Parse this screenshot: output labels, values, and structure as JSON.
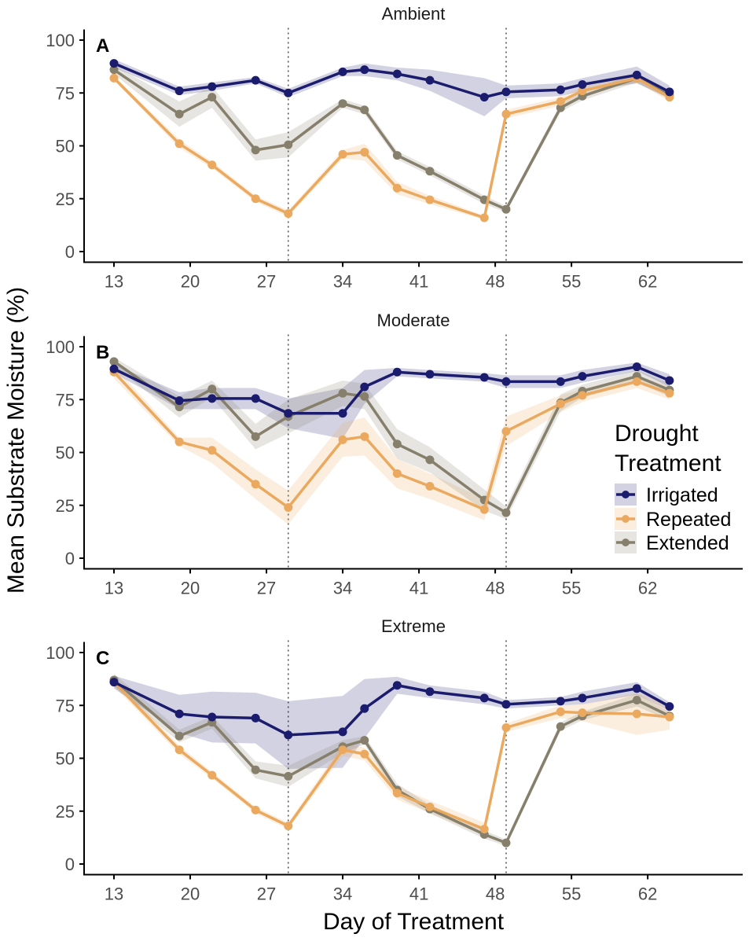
{
  "chart_data": {
    "type": "line",
    "ylabel": "Mean Substrate Moisture (%)",
    "xlabel": "Day of Treatment",
    "x_ticks": [
      13,
      20,
      27,
      34,
      41,
      48,
      55,
      62
    ],
    "y_ticks": [
      0,
      25,
      50,
      75,
      100
    ],
    "xlim": [
      10.4,
      71
    ],
    "ylim": [
      -5,
      105
    ],
    "reference_lines_x": [
      29,
      49
    ],
    "grid": false,
    "legend": {
      "title_line1": "Drought",
      "title_line2": "Treatment",
      "placement": "right of panel B"
    },
    "series_styles": [
      {
        "name": "Irrigated",
        "color": "#1c1c6e"
      },
      {
        "name": "Repeated",
        "color": "#eaa95e"
      },
      {
        "name": "Extended",
        "color": "#857f6b"
      }
    ],
    "x": [
      13,
      19,
      22,
      26,
      29,
      34,
      36,
      39,
      42,
      47,
      49,
      54,
      56,
      61,
      64
    ],
    "panels": [
      {
        "letter": "A",
        "title": "Ambient",
        "series": [
          {
            "name": "Irrigated",
            "values": [
              89,
              76,
              78,
              81,
              75,
              85,
              86,
              84,
              81,
              73,
              75.5,
              76.5,
              79,
              83.5,
              75.5
            ],
            "se": [
              2,
              2,
              2,
              1.5,
              2,
              2,
              3,
              3,
              5,
              9,
              3,
              3,
              3,
              4,
              3
            ]
          },
          {
            "name": "Repeated",
            "values": [
              82,
              51,
              41,
              25,
              18,
              46,
              47,
              30,
              24.5,
              16,
              65,
              71,
              76,
              82,
              73
            ],
            "se": [
              1,
              2,
              1.5,
              1.5,
              1.5,
              2,
              4,
              3,
              2,
              1,
              2,
              2,
              2,
              2,
              2
            ]
          },
          {
            "name": "Extended",
            "values": [
              86,
              65,
              73,
              48,
              50.5,
              70,
              67,
              45.5,
              38,
              24.5,
              20,
              68,
              73.5,
              82,
              74
            ],
            "se": [
              2,
              6,
              5,
              5,
              6,
              2,
              2,
              2,
              2,
              2,
              1.5,
              2,
              2,
              2,
              2
            ]
          }
        ]
      },
      {
        "letter": "B",
        "title": "Moderate",
        "series": [
          {
            "name": "Irrigated",
            "values": [
              89.5,
              74.5,
              75.5,
              75.5,
              68.5,
              68.5,
              81,
              88,
              87,
              85.5,
              83.5,
              83.5,
              86,
              90.5,
              84
            ],
            "se": [
              2,
              4,
              5,
              5,
              7,
              12,
              8,
              2,
              2,
              2,
              3,
              3,
              3,
              2,
              3
            ]
          },
          {
            "name": "Repeated",
            "values": [
              88,
              55,
              51,
              35,
              24,
              56,
              57.5,
              40,
              34,
              23,
              60,
              73,
              77,
              83.5,
              78
            ],
            "se": [
              3,
              2,
              6,
              7,
              8,
              8,
              9,
              7,
              6,
              5,
              7,
              4,
              3,
              3,
              3
            ]
          },
          {
            "name": "Extended",
            "values": [
              93,
              71.5,
              80,
              57.5,
              67,
              78,
              76.5,
              54,
              46.5,
              27.5,
              21.5,
              73.5,
              79,
              86,
              79.5
            ],
            "se": [
              2,
              5,
              4,
              6,
              8,
              6,
              6,
              7,
              6,
              5,
              3,
              4,
              3,
              3,
              3
            ]
          }
        ]
      },
      {
        "letter": "C",
        "title": "Extreme",
        "series": [
          {
            "name": "Irrigated",
            "values": [
              86,
              71,
              69.5,
              69,
              61,
              62.5,
              73.5,
              84.5,
              81.5,
              78.5,
              75.5,
              77,
              78.5,
              83,
              74.5
            ],
            "se": [
              3,
              9,
              12,
              12,
              16,
              17,
              14,
              4,
              3,
              3,
              2,
              2,
              3,
              3,
              2
            ]
          },
          {
            "name": "Repeated",
            "values": [
              86,
              54,
              42,
              25.5,
              18,
              54,
              52,
              33.5,
              27,
              16.5,
              64.5,
              72,
              71.5,
              71,
              69.5
            ],
            "se": [
              2,
              2,
              1.5,
              1.5,
              1.5,
              3,
              3,
              3,
              3,
              3,
              2,
              3,
              4,
              10,
              6
            ]
          },
          {
            "name": "Extended",
            "values": [
              87,
              60.5,
              67,
              44.5,
              41.5,
              55.5,
              58.5,
              35,
              26,
              14,
              10,
              65,
              70,
              77.5,
              70
            ],
            "se": [
              3,
              3,
              3,
              4,
              5,
              3,
              2,
              3,
              2,
              2,
              1.5,
              2,
              2,
              3,
              2
            ]
          }
        ]
      }
    ]
  }
}
